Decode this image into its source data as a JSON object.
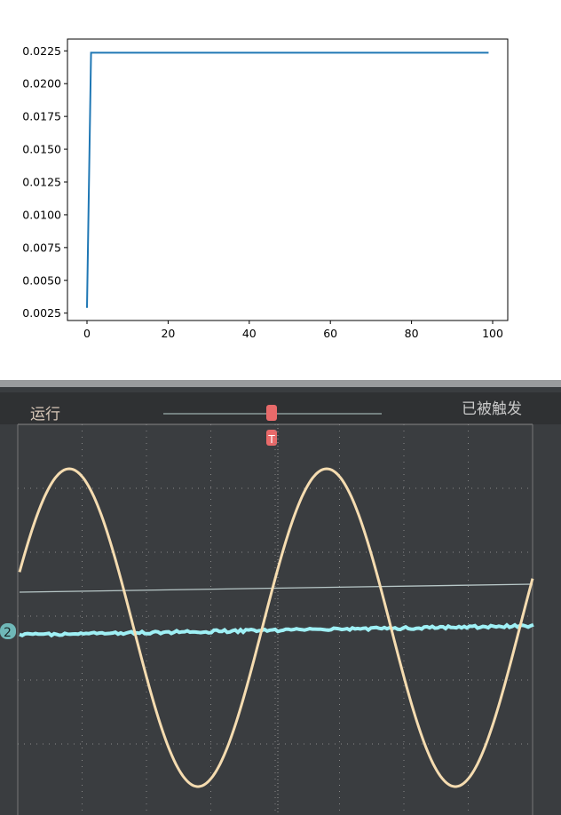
{
  "chart_data": {
    "type": "line",
    "title": "",
    "xlabel": "",
    "ylabel": "",
    "xlim": [
      -5,
      104
    ],
    "ylim": [
      0.0017,
      0.0233
    ],
    "xticks": [
      "0",
      "20",
      "40",
      "60",
      "80",
      "100"
    ],
    "yticks": [
      "0.0025",
      "0.0050",
      "0.0075",
      "0.0100",
      "0.0125",
      "0.0150",
      "0.0175",
      "0.0200",
      "0.0225"
    ],
    "grid": false,
    "line_color": "#1f77b4",
    "series": [
      {
        "x_start": 0,
        "x_end": 99,
        "values_note_free": true,
        "points": [
          [
            0,
            0.0029
          ],
          [
            1,
            0.02236
          ],
          [
            99,
            0.02236
          ]
        ]
      }
    ]
  },
  "scope": {
    "status_label": "运行",
    "trigger_label": "已被触发",
    "channel_label": "2",
    "trigger_marker": "T",
    "colors": {
      "background": "#3a3d40",
      "ch1": "#f5dcb0",
      "ch2": "#9ff0f5",
      "marker": "#e86a6a"
    }
  }
}
